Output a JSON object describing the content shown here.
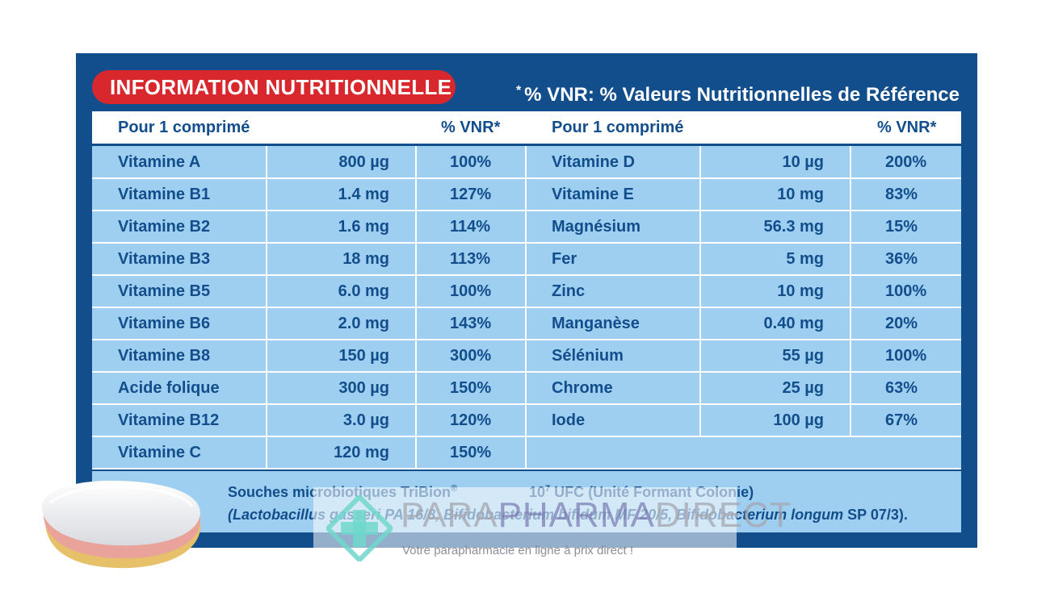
{
  "title": "INFORMATION NUTRITIONNELLE",
  "vnr_note": {
    "star": "*",
    "text": "% VNR: % Valeurs Nutritionnelles de Référence"
  },
  "header": {
    "col1": "Pour 1 comprimé",
    "col2": "% VNR*",
    "col3": "Pour 1 comprimé",
    "col4": "% VNR*"
  },
  "left_rows": [
    {
      "name": "Vitamine A",
      "amount": "800 µg",
      "vnr": "100%"
    },
    {
      "name": "Vitamine B1",
      "amount": "1.4 mg",
      "vnr": "127%"
    },
    {
      "name": "Vitamine B2",
      "amount": "1.6 mg",
      "vnr": "114%"
    },
    {
      "name": "Vitamine B3",
      "amount": "18 mg",
      "vnr": "113%"
    },
    {
      "name": "Vitamine B5",
      "amount": "6.0 mg",
      "vnr": "100%"
    },
    {
      "name": "Vitamine B6",
      "amount": "2.0 mg",
      "vnr": "143%"
    },
    {
      "name": "Vitamine B8",
      "amount": "150 µg",
      "vnr": "300%"
    },
    {
      "name": "Acide folique",
      "amount": "300 µg",
      "vnr": "150%"
    },
    {
      "name": "Vitamine B12",
      "amount": "3.0 µg",
      "vnr": "120%"
    },
    {
      "name": "Vitamine C",
      "amount": "120 mg",
      "vnr": "150%"
    }
  ],
  "right_rows": [
    {
      "name": "Vitamine D",
      "amount": "10 µg",
      "vnr": "200%"
    },
    {
      "name": "Vitamine E",
      "amount": "10 mg",
      "vnr": "83%"
    },
    {
      "name": "Magnésium",
      "amount": "56.3 mg",
      "vnr": "15%"
    },
    {
      "name": "Fer",
      "amount": "5 mg",
      "vnr": "36%"
    },
    {
      "name": "Zinc",
      "amount": "10 mg",
      "vnr": "100%"
    },
    {
      "name": "Manganèse",
      "amount": "0.40 mg",
      "vnr": "20%"
    },
    {
      "name": "Sélénium",
      "amount": "55 µg",
      "vnr": "100%"
    },
    {
      "name": "Chrome",
      "amount": "25 µg",
      "vnr": "63%"
    },
    {
      "name": "Iode",
      "amount": "100 µg",
      "vnr": "67%"
    }
  ],
  "footer": {
    "line1_label": "Souches microbiotiques TriBion",
    "line1_mark": "®",
    "line1_value_base": "10",
    "line1_value_exp": "7",
    "line1_value_rest": " UFC (Unité Formant Colonie)",
    "line2_italic": "(Lactobacillus gasseri PA 16/8, Bifidobacterium bifidum MF 20/5, Bifidobacterium longum",
    "line2_rest": " SP 07/3)."
  },
  "watermark": {
    "brand_a": "PARA",
    "brand_b": "PHARMA",
    "brand_c": "DIRECT",
    "tagline": "Votre parapharmacie en ligne à prix direct !"
  },
  "colors": {
    "navy": "#124e8c",
    "light_blue": "#9ecff0",
    "red": "#d9272e"
  },
  "icons": [
    "tablet-image",
    "plus-cross-logo-icon"
  ]
}
